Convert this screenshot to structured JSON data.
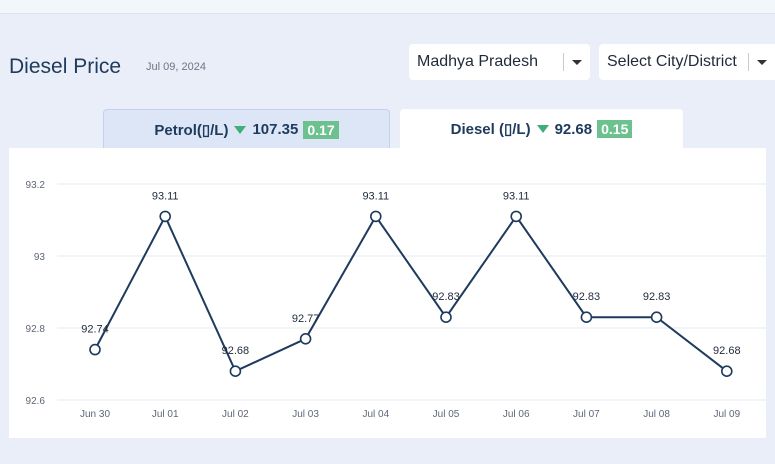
{
  "header": {
    "title": "Diesel Price",
    "date": "Jul 09, 2024"
  },
  "filters": {
    "state": "Madhya Pradesh",
    "city": "Select City/District"
  },
  "tabs": [
    {
      "name": "Petrol(▯/L)",
      "price": "107.35",
      "change": "0.17",
      "direction": "down"
    },
    {
      "name": "Diesel (▯/L)",
      "price": "92.68",
      "change": "0.15",
      "direction": "down"
    }
  ],
  "colors": {
    "line": "#1e3a5c",
    "change_badge": "#6cc18f",
    "down_arrow": "#3fae79",
    "selected_tab": "#ffffff",
    "inactive_tab": "#dce6f7"
  },
  "chart_data": {
    "type": "line",
    "categories": [
      "Jun 30",
      "Jul 01",
      "Jul 02",
      "Jul 03",
      "Jul 04",
      "Jul 05",
      "Jul 06",
      "Jul 07",
      "Jul 08",
      "Jul 09"
    ],
    "values": [
      92.74,
      93.11,
      92.68,
      92.77,
      93.11,
      92.83,
      93.11,
      92.83,
      92.83,
      92.68
    ],
    "data_labels": [
      "92.74",
      "93.11",
      "92.68",
      "92.77",
      "93.11",
      "92.83",
      "93.11",
      "92.83",
      "92.83",
      "92.68"
    ],
    "ylim": [
      92.6,
      93.2
    ],
    "yticks": [
      92.6,
      92.8,
      93,
      93.2
    ],
    "ytick_labels": [
      "92.6",
      "92.8",
      "93",
      "93.2"
    ],
    "grid": true,
    "legend": "none"
  }
}
